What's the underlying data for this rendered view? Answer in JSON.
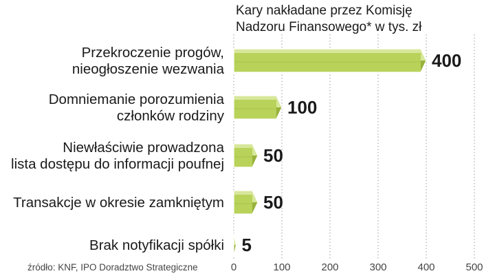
{
  "chart_data": {
    "type": "bar",
    "orientation": "horizontal",
    "title": [
      "Kary nakładane przez Komisję",
      "Nadzoru Finansowego* w tys. zł"
    ],
    "categories": [
      [
        "Przekroczenie progów,",
        "nieogłoszenie wezwania"
      ],
      [
        "Domniemanie porozumienia",
        "członków rodziny"
      ],
      [
        "Niewłaściwie prowadzona",
        "lista dostępu do informacji poufnej"
      ],
      [
        "Transakcje w okresie zamkniętym"
      ],
      [
        "Brak notyfikacji spółki"
      ]
    ],
    "values": [
      400,
      100,
      50,
      50,
      5
    ],
    "value_labels": [
      "400",
      "100",
      "50",
      "50",
      "5"
    ],
    "xlim": [
      0,
      500
    ],
    "xticks": [
      0,
      100,
      200,
      300,
      400,
      500
    ],
    "grid": "vertical dotted",
    "colors": {
      "bar": "#b8d25a",
      "bar_light": "#d7e79a",
      "bar_dark": "#97b23c",
      "grid": "#9a9a9a"
    },
    "source": "źródło: KNF, IPO Doradztwo Strategiczne"
  }
}
